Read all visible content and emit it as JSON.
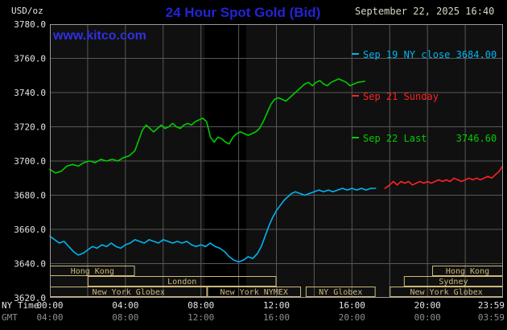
{
  "header": {
    "unit_label": "USD/oz",
    "title": "24 Hour Spot Gold (Bid)",
    "datetime": "September 22, 2025 16:40",
    "watermark": "www.kitco.com"
  },
  "legend": {
    "items": [
      {
        "label": "Sep 19 NY close 3684.00",
        "color": "#00B4F0"
      },
      {
        "label": "Sep 21 Sunday",
        "color": "#FF2222"
      },
      {
        "label": "Sep 22 Last     3746.60",
        "color": "#00CC00"
      }
    ]
  },
  "axes": {
    "ny_time_label": "NY Time",
    "gmt_label": "GMT"
  },
  "sessions": {
    "color": "#CDB97A",
    "boxes": [
      {
        "row": 0,
        "label": "Hong Kong",
        "start_hour": 0,
        "end_hour": 4.5
      },
      {
        "row": 0,
        "label": "Hong Kong",
        "start_hour": 20.25,
        "end_hour": 24
      },
      {
        "row": 1,
        "label": "London",
        "start_hour": 2,
        "end_hour": 12
      },
      {
        "row": 1,
        "label": "Sydney",
        "start_hour": 18.75,
        "end_hour": 24
      },
      {
        "row": 2,
        "label": "New York Globex",
        "start_hour": 0,
        "end_hour": 8.33
      },
      {
        "row": 2,
        "label": "New York NYMEX",
        "start_hour": 8.33,
        "end_hour": 13.3
      },
      {
        "row": 2,
        "label": "NY Globex",
        "start_hour": 13.55,
        "end_hour": 17.25
      },
      {
        "row": 2,
        "label": "New York Globex",
        "start_hour": 18,
        "end_hour": 24
      }
    ]
  },
  "colors": {
    "background": "#000000",
    "plot_background": "#101010",
    "shaded_band": "#000000",
    "grid": "#585858",
    "plot_border": "#9A9A9A",
    "axis_text": "#E4E4E4",
    "gmt_text": "#8E8E8E",
    "title_blue": "#2323D6",
    "watermark_blue": "#3030E0",
    "datetime_text": "#D8D8C4"
  },
  "chart_data": {
    "type": "line",
    "title": "24 Hour Spot Gold (Bid)",
    "xlabel": "NY Time (hours 00:00-23:59)",
    "ylabel": "USD/oz",
    "xlim": [
      0,
      24
    ],
    "ylim": [
      3620,
      3780
    ],
    "y_grid_step": 20,
    "x_grid_step_hours": 2,
    "grid": true,
    "legend_position": "top-right",
    "shaded_band_hours": [
      8.2,
      10.4
    ],
    "y_tick_labels": [
      "3780.0",
      "3760.0",
      "3740.0",
      "3720.0",
      "3700.0",
      "3680.0",
      "3660.0",
      "3640.0",
      "3620.0"
    ],
    "x_ticks": [
      {
        "hour": 0,
        "ny": "00:00",
        "gmt": "04:00"
      },
      {
        "hour": 4,
        "ny": "04:00",
        "gmt": "08:00"
      },
      {
        "hour": 8,
        "ny": "08:00",
        "gmt": "12:00"
      },
      {
        "hour": 12,
        "ny": "12:00",
        "gmt": "16:00"
      },
      {
        "hour": 16,
        "ny": "16:00",
        "gmt": "20:00"
      },
      {
        "hour": 20,
        "ny": "20:00",
        "gmt": "00:00"
      },
      {
        "hour": 24,
        "ny": "23:59",
        "gmt": "03:59"
      }
    ],
    "series": [
      {
        "name": "Sep 19 NY close 3684.00",
        "color": "#00B4F0",
        "points": [
          [
            0,
            3656
          ],
          [
            0.25,
            3654
          ],
          [
            0.5,
            3652
          ],
          [
            0.75,
            3653
          ],
          [
            1,
            3650
          ],
          [
            1.25,
            3647
          ],
          [
            1.5,
            3645
          ],
          [
            1.75,
            3646
          ],
          [
            2,
            3648
          ],
          [
            2.25,
            3650
          ],
          [
            2.5,
            3649
          ],
          [
            2.75,
            3651
          ],
          [
            3,
            3650
          ],
          [
            3.25,
            3652
          ],
          [
            3.5,
            3650
          ],
          [
            3.75,
            3649
          ],
          [
            4,
            3651
          ],
          [
            4.25,
            3652
          ],
          [
            4.5,
            3654
          ],
          [
            4.75,
            3653
          ],
          [
            5,
            3652
          ],
          [
            5.25,
            3654
          ],
          [
            5.5,
            3653
          ],
          [
            5.75,
            3652
          ],
          [
            6,
            3654
          ],
          [
            6.25,
            3653
          ],
          [
            6.5,
            3652
          ],
          [
            6.75,
            3653
          ],
          [
            7,
            3652
          ],
          [
            7.25,
            3653
          ],
          [
            7.5,
            3651
          ],
          [
            7.75,
            3650
          ],
          [
            8,
            3651
          ],
          [
            8.25,
            3650
          ],
          [
            8.5,
            3652
          ],
          [
            8.75,
            3650
          ],
          [
            9,
            3649
          ],
          [
            9.25,
            3647
          ],
          [
            9.5,
            3644
          ],
          [
            9.75,
            3642
          ],
          [
            10,
            3641
          ],
          [
            10.25,
            3642
          ],
          [
            10.5,
            3644
          ],
          [
            10.75,
            3643
          ],
          [
            11,
            3646
          ],
          [
            11.2,
            3650
          ],
          [
            11.4,
            3656
          ],
          [
            11.6,
            3662
          ],
          [
            11.8,
            3667
          ],
          [
            12,
            3671
          ],
          [
            12.2,
            3674
          ],
          [
            12.4,
            3677
          ],
          [
            12.6,
            3679
          ],
          [
            12.8,
            3681
          ],
          [
            13,
            3682
          ],
          [
            13.25,
            3681
          ],
          [
            13.5,
            3680
          ],
          [
            13.75,
            3681
          ],
          [
            14,
            3682
          ],
          [
            14.25,
            3683
          ],
          [
            14.5,
            3682
          ],
          [
            14.75,
            3683
          ],
          [
            15,
            3682
          ],
          [
            15.25,
            3683
          ],
          [
            15.5,
            3684
          ],
          [
            15.75,
            3683
          ],
          [
            16,
            3684
          ],
          [
            16.25,
            3683
          ],
          [
            16.5,
            3684
          ],
          [
            16.75,
            3683
          ],
          [
            17,
            3684
          ],
          [
            17.25,
            3684
          ]
        ]
      },
      {
        "name": "Sep 21 Sunday",
        "color": "#FF2222",
        "points": [
          [
            17.75,
            3684
          ],
          [
            18,
            3686
          ],
          [
            18.2,
            3688
          ],
          [
            18.4,
            3686
          ],
          [
            18.6,
            3688
          ],
          [
            18.8,
            3687
          ],
          [
            19,
            3688
          ],
          [
            19.2,
            3686
          ],
          [
            19.4,
            3687
          ],
          [
            19.6,
            3688
          ],
          [
            19.8,
            3687
          ],
          [
            20,
            3688
          ],
          [
            20.2,
            3687
          ],
          [
            20.4,
            3688
          ],
          [
            20.6,
            3689
          ],
          [
            20.8,
            3688
          ],
          [
            21,
            3689
          ],
          [
            21.2,
            3688
          ],
          [
            21.4,
            3690
          ],
          [
            21.6,
            3689
          ],
          [
            21.8,
            3688
          ],
          [
            22,
            3689
          ],
          [
            22.2,
            3690
          ],
          [
            22.4,
            3689
          ],
          [
            22.6,
            3690
          ],
          [
            22.8,
            3689
          ],
          [
            23,
            3690
          ],
          [
            23.2,
            3691
          ],
          [
            23.4,
            3690
          ],
          [
            23.6,
            3692
          ],
          [
            23.8,
            3694
          ],
          [
            23.98,
            3697
          ]
        ]
      },
      {
        "name": "Sep 22 Last 3746.60",
        "color": "#00CC00",
        "points": [
          [
            0,
            3695
          ],
          [
            0.3,
            3693
          ],
          [
            0.6,
            3694
          ],
          [
            0.9,
            3697
          ],
          [
            1.2,
            3698
          ],
          [
            1.5,
            3697
          ],
          [
            1.8,
            3699
          ],
          [
            2.1,
            3700
          ],
          [
            2.4,
            3699
          ],
          [
            2.7,
            3701
          ],
          [
            3,
            3700
          ],
          [
            3.3,
            3701
          ],
          [
            3.6,
            3700
          ],
          [
            3.9,
            3702
          ],
          [
            4.2,
            3703
          ],
          [
            4.5,
            3706
          ],
          [
            4.7,
            3712
          ],
          [
            4.9,
            3718
          ],
          [
            5.1,
            3721
          ],
          [
            5.3,
            3719
          ],
          [
            5.5,
            3717
          ],
          [
            5.7,
            3719
          ],
          [
            5.9,
            3721
          ],
          [
            6.1,
            3719
          ],
          [
            6.3,
            3720
          ],
          [
            6.5,
            3722
          ],
          [
            6.7,
            3720
          ],
          [
            6.9,
            3719
          ],
          [
            7.1,
            3721
          ],
          [
            7.3,
            3722
          ],
          [
            7.5,
            3721
          ],
          [
            7.7,
            3723
          ],
          [
            7.9,
            3724
          ],
          [
            8.1,
            3725
          ],
          [
            8.3,
            3723
          ],
          [
            8.5,
            3714
          ],
          [
            8.7,
            3711
          ],
          [
            8.9,
            3714
          ],
          [
            9.1,
            3713
          ],
          [
            9.3,
            3711
          ],
          [
            9.5,
            3710
          ],
          [
            9.7,
            3714
          ],
          [
            9.9,
            3716
          ],
          [
            10.1,
            3717
          ],
          [
            10.3,
            3716
          ],
          [
            10.5,
            3715
          ],
          [
            10.7,
            3716
          ],
          [
            10.9,
            3717
          ],
          [
            11.1,
            3719
          ],
          [
            11.3,
            3723
          ],
          [
            11.5,
            3728
          ],
          [
            11.7,
            3733
          ],
          [
            11.9,
            3736
          ],
          [
            12.1,
            3737
          ],
          [
            12.3,
            3736
          ],
          [
            12.5,
            3735
          ],
          [
            12.7,
            3737
          ],
          [
            12.9,
            3739
          ],
          [
            13.1,
            3741
          ],
          [
            13.3,
            3743
          ],
          [
            13.5,
            3745
          ],
          [
            13.7,
            3746
          ],
          [
            13.9,
            3744
          ],
          [
            14.1,
            3746
          ],
          [
            14.3,
            3747
          ],
          [
            14.5,
            3745
          ],
          [
            14.7,
            3744
          ],
          [
            14.9,
            3746
          ],
          [
            15.1,
            3747
          ],
          [
            15.3,
            3748
          ],
          [
            15.5,
            3747
          ],
          [
            15.7,
            3746
          ],
          [
            15.9,
            3744
          ],
          [
            16.1,
            3745
          ],
          [
            16.3,
            3746
          ],
          [
            16.67,
            3746.6
          ]
        ]
      }
    ]
  }
}
